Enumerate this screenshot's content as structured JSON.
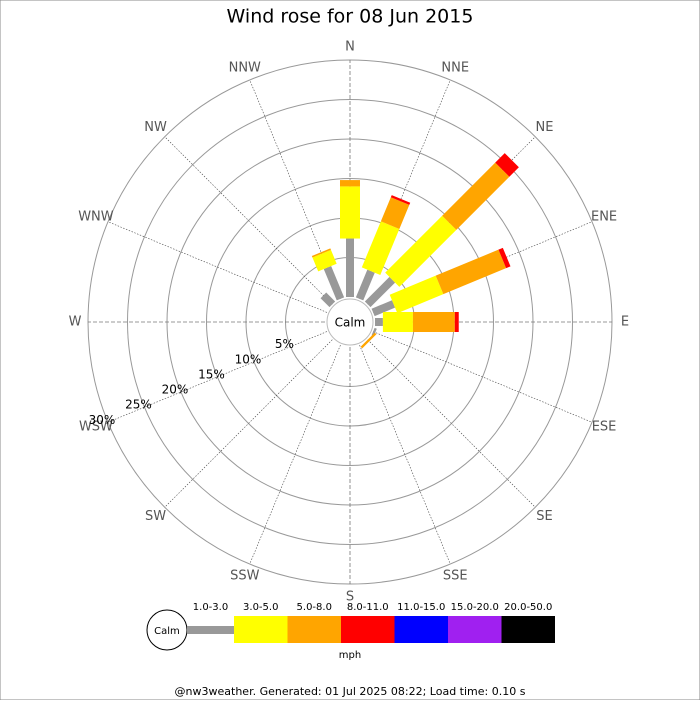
{
  "chart_data": {
    "type": "windrose",
    "title": "Wind rose for 08 Jun 2015",
    "directions": [
      "N",
      "NNE",
      "NE",
      "ENE",
      "E",
      "ESE",
      "SE",
      "SSE",
      "S",
      "SSW",
      "SW",
      "WSW",
      "W",
      "WNW",
      "NW",
      "NNW"
    ],
    "calm_label": "Calm",
    "series": [
      {
        "name": "1.0-3.0",
        "color": "#999999",
        "values": [
          7.4,
          3.8,
          4.4,
          2.8,
          1.0,
          0.3,
          0,
          0,
          0,
          0,
          0,
          0,
          0,
          0,
          1.6,
          4.3
        ]
      },
      {
        "name": "3.0-5.0",
        "color": "#ffff00",
        "values": [
          6.6,
          6.3,
          10.2,
          6.3,
          3.8,
          0,
          0,
          0,
          0,
          0,
          0,
          0,
          0,
          0,
          0,
          1.9
        ]
      },
      {
        "name": "5.0-8.0",
        "color": "#ffa500",
        "values": [
          0.8,
          3.3,
          9.5,
          8.6,
          5.3,
          0,
          0.3,
          0,
          0,
          0,
          0,
          0,
          0,
          0,
          0,
          0.2
        ]
      },
      {
        "name": "8.0-11.0",
        "color": "#ff0000",
        "values": [
          0,
          0.3,
          1.7,
          0.6,
          0.5,
          0,
          0,
          0,
          0,
          0,
          0,
          0,
          0,
          0,
          0,
          0
        ]
      },
      {
        "name": "11.0-15.0",
        "color": "#0000ff",
        "values": [
          0,
          0,
          0,
          0,
          0,
          0,
          0,
          0,
          0,
          0,
          0,
          0,
          0,
          0,
          0,
          0
        ]
      },
      {
        "name": "15.0-20.0",
        "color": "#a020f0",
        "values": [
          0,
          0,
          0,
          0,
          0,
          0,
          0,
          0,
          0,
          0,
          0,
          0,
          0,
          0,
          0,
          0
        ]
      },
      {
        "name": "20.0-50.0",
        "color": "#000000",
        "values": [
          0,
          0,
          0,
          0,
          0,
          0,
          0,
          0,
          0,
          0,
          0,
          0,
          0,
          0,
          0,
          0
        ]
      }
    ],
    "rlim": [
      0,
      30
    ],
    "rticks": [
      {
        "value": 5,
        "label": "5%"
      },
      {
        "value": 10,
        "label": "10%"
      },
      {
        "value": 15,
        "label": "15%"
      },
      {
        "value": 20,
        "label": "20%"
      },
      {
        "value": 25,
        "label": "25%"
      },
      {
        "value": 30,
        "label": "30%"
      }
    ],
    "units": "mph",
    "footer": "@nw3weather. Generated: 01 Jul 2025 08:22; Load time: 0.10 s"
  }
}
